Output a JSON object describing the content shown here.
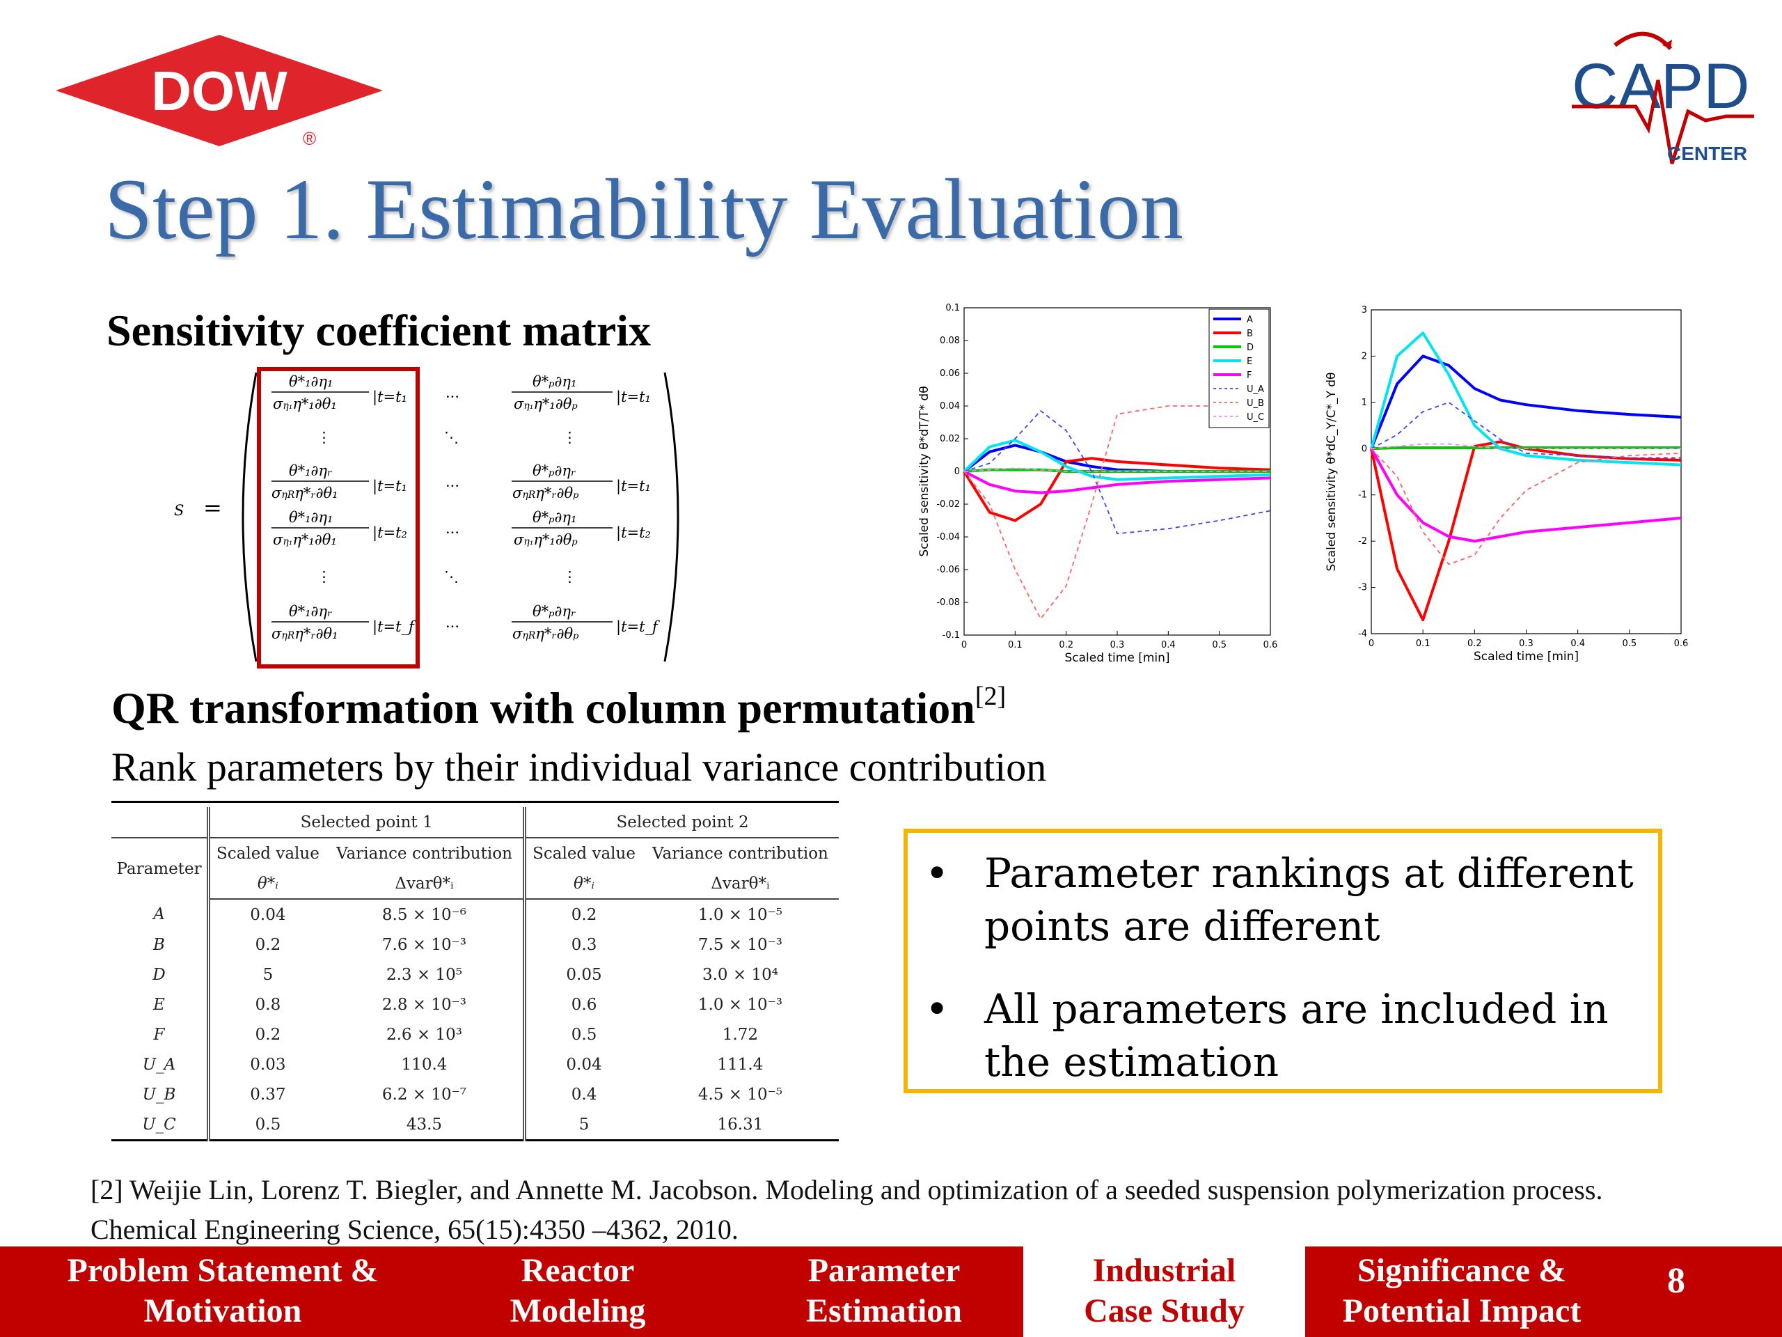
{
  "logos": {
    "dow": "DOW",
    "dow_registered": "®",
    "capd": "CAPD",
    "capd_sub": "CENTER"
  },
  "title": "Step 1. Estimability Evaluation",
  "sensitivity": {
    "heading": "Sensitivity coefficient matrix",
    "matrix_symbol": "S",
    "equals": "="
  },
  "charts": [
    {
      "ylabel": "Scaled sensitivity  θ*dT/T* dθ",
      "xlabel": "Scaled time [min]",
      "x_ticks": [
        "0",
        "0.1",
        "0.2",
        "0.3",
        "0.4",
        "0.5",
        "0.6"
      ],
      "y_ticks": [
        "0.1",
        "0.08",
        "0.06",
        "0.04",
        "0.02",
        "0",
        "-0.02",
        "-0.04",
        "-0.06",
        "-0.08",
        "-0.1"
      ],
      "legend": [
        "A",
        "B",
        "D",
        "E",
        "F",
        "U_A",
        "U_B",
        "U_C"
      ]
    },
    {
      "ylabel": "Scaled sensitivity  θ*dC_Y/C*_Y dθ",
      "xlabel": "Scaled time [min]",
      "x_ticks": [
        "0",
        "0.1",
        "0.2",
        "0.3",
        "0.4",
        "0.5",
        "0.6"
      ],
      "y_ticks": [
        "3",
        "2",
        "1",
        "0",
        "-1",
        "-2",
        "-3",
        "-4"
      ]
    }
  ],
  "chart_data": [
    {
      "type": "line",
      "xlabel": "Scaled time [min]",
      "ylabel": "Scaled sensitivity θ*dT/T* dθ",
      "xlim": [
        0,
        0.6
      ],
      "ylim": [
        -0.1,
        0.1
      ],
      "legend_position": "top-right",
      "x": [
        0,
        0.05,
        0.1,
        0.15,
        0.2,
        0.25,
        0.3,
        0.4,
        0.5,
        0.6
      ],
      "series": [
        {
          "name": "A",
          "color": "#0000ff",
          "style": "solid",
          "values": [
            0,
            0.012,
            0.016,
            0.012,
            0.006,
            0.003,
            0.001,
            0.0,
            0.0,
            0.0
          ]
        },
        {
          "name": "B",
          "color": "#ff0000",
          "style": "solid",
          "values": [
            0,
            -0.025,
            -0.03,
            -0.02,
            0.006,
            0.008,
            0.006,
            0.004,
            0.002,
            0.001
          ]
        },
        {
          "name": "D",
          "color": "#00cc00",
          "style": "solid",
          "values": [
            0,
            0.001,
            0.001,
            0.001,
            0.0,
            0.0,
            0.0,
            0.0,
            0.0,
            0.0
          ]
        },
        {
          "name": "E",
          "color": "#00e5ee",
          "style": "solid",
          "values": [
            0,
            0.015,
            0.019,
            0.012,
            0.003,
            -0.003,
            -0.005,
            -0.004,
            -0.003,
            -0.002
          ]
        },
        {
          "name": "F",
          "color": "#ff00ff",
          "style": "solid",
          "values": [
            0,
            -0.008,
            -0.012,
            -0.013,
            -0.012,
            -0.01,
            -0.008,
            -0.006,
            -0.005,
            -0.004
          ]
        },
        {
          "name": "U_A",
          "color": "#4040ff",
          "style": "dashed",
          "values": [
            0,
            0.005,
            0.02,
            0.037,
            0.025,
            0.0,
            -0.038,
            -0.035,
            -0.03,
            -0.024
          ]
        },
        {
          "name": "U_B",
          "color": "#ff6060",
          "style": "dashed",
          "values": [
            0,
            -0.02,
            -0.06,
            -0.09,
            -0.07,
            -0.02,
            0.035,
            0.04,
            0.04,
            0.039
          ]
        },
        {
          "name": "U_C",
          "color": "#ff80ff",
          "style": "dashed",
          "values": [
            0,
            0.001,
            0.002,
            0.001,
            0.0,
            0.0,
            0.0,
            0.0,
            0.0,
            0.0
          ]
        }
      ]
    },
    {
      "type": "line",
      "xlabel": "Scaled time [min]",
      "ylabel": "Scaled sensitivity θ*dC_Y/C*_Y dθ",
      "xlim": [
        0,
        0.6
      ],
      "ylim": [
        -4,
        3
      ],
      "x": [
        0,
        0.05,
        0.1,
        0.15,
        0.2,
        0.25,
        0.3,
        0.4,
        0.5,
        0.6
      ],
      "series": [
        {
          "name": "A",
          "color": "#0000ff",
          "style": "solid",
          "values": [
            0,
            1.4,
            2.0,
            1.8,
            1.3,
            1.05,
            0.95,
            0.82,
            0.74,
            0.68
          ]
        },
        {
          "name": "B",
          "color": "#ff0000",
          "style": "solid",
          "values": [
            0,
            -2.6,
            -3.7,
            -2.0,
            0.05,
            0.15,
            0.0,
            -0.15,
            -0.22,
            -0.25
          ]
        },
        {
          "name": "D",
          "color": "#00cc00",
          "style": "solid",
          "values": [
            0,
            0.02,
            0.02,
            0.02,
            0.02,
            0.02,
            0.02,
            0.02,
            0.02,
            0.02
          ]
        },
        {
          "name": "E",
          "color": "#00e5ee",
          "style": "solid",
          "values": [
            0,
            2.0,
            2.5,
            1.6,
            0.5,
            0.0,
            -0.15,
            -0.25,
            -0.3,
            -0.35
          ]
        },
        {
          "name": "F",
          "color": "#ff00ff",
          "style": "solid",
          "values": [
            0,
            -1.0,
            -1.6,
            -1.9,
            -2.0,
            -1.9,
            -1.8,
            -1.7,
            -1.6,
            -1.5
          ]
        },
        {
          "name": "U_A",
          "color": "#4040ff",
          "style": "dashed",
          "values": [
            0,
            0.3,
            0.8,
            1.0,
            0.6,
            0.2,
            -0.1,
            -0.15,
            -0.2,
            -0.2
          ]
        },
        {
          "name": "U_B",
          "color": "#ff6060",
          "style": "dashed",
          "values": [
            0,
            -0.6,
            -1.8,
            -2.5,
            -2.3,
            -1.5,
            -0.9,
            -0.3,
            -0.15,
            -0.1
          ]
        },
        {
          "name": "U_C",
          "color": "#ff80ff",
          "style": "dashed",
          "values": [
            0,
            0.05,
            0.1,
            0.1,
            0.05,
            0.0,
            0.0,
            0.0,
            0.0,
            0.0
          ]
        }
      ]
    }
  ],
  "qr": {
    "heading": "QR transformation with column permutation",
    "ref_mark": "[2]",
    "subheading": "Rank parameters by their individual variance contribution"
  },
  "table": {
    "group1": "Selected point 1",
    "group2": "Selected point 2",
    "param_header": "Parameter",
    "scaled_value": "Scaled value",
    "variance_contribution": "Variance contribution",
    "theta_symbol": "θ*ᵢ",
    "dvar_symbol": "Δvarθ*ᵢ",
    "rows": [
      {
        "param": "A",
        "sv1": "0.04",
        "vc1": "8.5 × 10⁻⁶",
        "sv2": "0.2",
        "vc2": "1.0 × 10⁻⁵"
      },
      {
        "param": "B",
        "sv1": "0.2",
        "vc1": "7.6 × 10⁻³",
        "sv2": "0.3",
        "vc2": "7.5 × 10⁻³"
      },
      {
        "param": "D",
        "sv1": "5",
        "vc1": "2.3 × 10⁵",
        "sv2": "0.05",
        "vc2": "3.0 × 10⁴"
      },
      {
        "param": "E",
        "sv1": "0.8",
        "vc1": "2.8 × 10⁻³",
        "sv2": "0.6",
        "vc2": "1.0 × 10⁻³"
      },
      {
        "param": "F",
        "sv1": "0.2",
        "vc1": "2.6 × 10³",
        "sv2": "0.5",
        "vc2": "1.72"
      },
      {
        "param": "U_A",
        "sv1": "0.03",
        "vc1": "110.4",
        "sv2": "0.04",
        "vc2": "111.4"
      },
      {
        "param": "U_B",
        "sv1": "0.37",
        "vc1": "6.2 × 10⁻⁷",
        "sv2": "0.4",
        "vc2": "4.5 × 10⁻⁵"
      },
      {
        "param": "U_C",
        "sv1": "0.5",
        "vc1": "43.5",
        "sv2": "5",
        "vc2": "16.31"
      }
    ]
  },
  "callout": {
    "bullets": [
      "Parameter rankings at different points are different",
      "All parameters are included in the estimation"
    ]
  },
  "reference": "[2] Weijie Lin, Lorenz T. Biegler, and Annette M. Jacobson. Modeling and optimization of a seeded suspension polymerization process. Chemical Engineering Science, 65(15):4350 –4362, 2010.",
  "footer": {
    "tabs": [
      {
        "line1": "Problem Statement &",
        "line2": "Motivation"
      },
      {
        "line1": "Reactor",
        "line2": "Modeling"
      },
      {
        "line1": "Parameter",
        "line2": "Estimation"
      },
      {
        "line1": "Industrial",
        "line2": "Case Study"
      },
      {
        "line1": "Significance &",
        "line2": "Potential Impact"
      }
    ],
    "active_tab": "Industrial Case Study",
    "page_number": "8"
  },
  "colors": {
    "title": "#3a6aa8",
    "footer_bg": "#c10000",
    "dow_red": "#e0242b",
    "capd_blue": "#1f4e8c",
    "callout_border": "#f2b500"
  }
}
